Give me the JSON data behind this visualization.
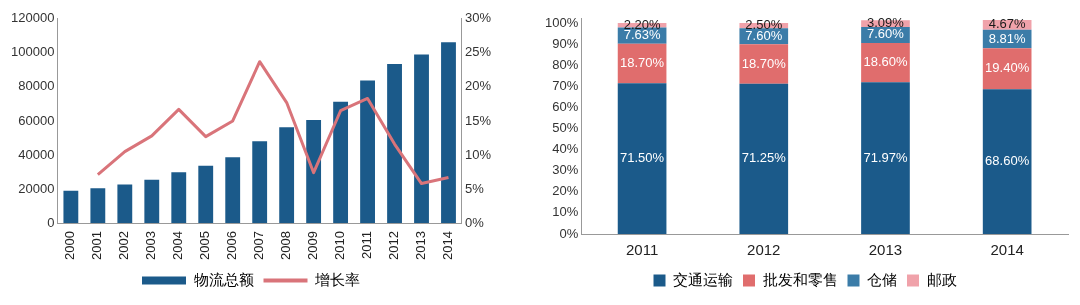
{
  "chart_data": [
    {
      "type": "bar",
      "categories": [
        "2000",
        "2001",
        "2002",
        "2003",
        "2004",
        "2005",
        "2006",
        "2007",
        "2008",
        "2009",
        "2010",
        "2011",
        "2012",
        "2013",
        "2014"
      ],
      "series": [
        {
          "name": "物流总额",
          "color": "#1b5a8a",
          "values": [
            19000,
            20500,
            22600,
            25400,
            29800,
            33700,
            38600,
            48000,
            56300,
            60500,
            71200,
            83800,
            93400,
            99100,
            106200
          ]
        },
        {
          "name": "增长率",
          "type": "line",
          "axis": "y2",
          "color": "#d9747a",
          "values": [
            null,
            7.1,
            10.5,
            12.8,
            16.7,
            12.7,
            15.0,
            23.7,
            17.7,
            7.4,
            16.5,
            18.3,
            11.6,
            5.8,
            6.7
          ]
        }
      ],
      "ylim": [
        0,
        120000
      ],
      "yticks": [
        0,
        20000,
        40000,
        60000,
        80000,
        100000,
        120000
      ],
      "y2lim": [
        0,
        30
      ],
      "y2ticks": [
        {
          "value": 0,
          "label": "0%"
        },
        {
          "value": 5,
          "label": "5%"
        },
        {
          "value": 10,
          "label": "10%"
        },
        {
          "value": 15,
          "label": "15%"
        },
        {
          "value": 20,
          "label": "20%"
        },
        {
          "value": 25,
          "label": "25%"
        },
        {
          "value": 30,
          "label": "30%"
        }
      ],
      "marker": "none",
      "grid": false,
      "legend": "bottom"
    },
    {
      "type": "bar",
      "stacked": true,
      "categories": [
        "2011",
        "2012",
        "2013",
        "2014"
      ],
      "series": [
        {
          "name": "交通运输",
          "color": "#1b5a8a",
          "values": [
            71.5,
            71.25,
            71.97,
            68.6
          ],
          "value_labels": [
            "71.50%",
            "71.25%",
            "71.97%",
            "68.60%"
          ]
        },
        {
          "name": "批发和零售",
          "color": "#e06d6d",
          "values": [
            18.7,
            18.7,
            18.6,
            19.4
          ],
          "value_labels": [
            "18.70%",
            "18.70%",
            "18.60%",
            "19.40%"
          ]
        },
        {
          "name": "仓储",
          "color": "#3b7ca8",
          "values": [
            7.63,
            7.6,
            7.6,
            8.81
          ],
          "value_labels": [
            "7.63%",
            "7.60%",
            "7.60%",
            "8.81%"
          ]
        },
        {
          "name": "邮政",
          "color": "#f0a2aa",
          "values": [
            2.2,
            2.5,
            3.09,
            4.67
          ],
          "value_labels": [
            "2.20%",
            "2.50%",
            "3.09%",
            "4.67%"
          ]
        }
      ],
      "ylim": [
        0,
        102
      ],
      "yticks": [
        {
          "value": 0,
          "label": "0%"
        },
        {
          "value": 10,
          "label": "10%"
        },
        {
          "value": 20,
          "label": "20%"
        },
        {
          "value": 30,
          "label": "30%"
        },
        {
          "value": 40,
          "label": "40%"
        },
        {
          "value": 50,
          "label": "50%"
        },
        {
          "value": 60,
          "label": "60%"
        },
        {
          "value": 70,
          "label": "70%"
        },
        {
          "value": 80,
          "label": "80%"
        },
        {
          "value": 90,
          "label": "90%"
        },
        {
          "value": 100,
          "label": "100%"
        }
      ],
      "grid": false,
      "legend": "bottom"
    }
  ]
}
